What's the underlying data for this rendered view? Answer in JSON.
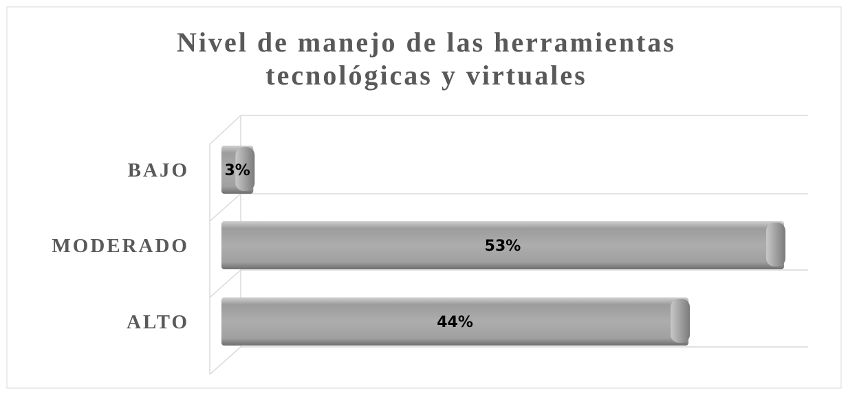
{
  "chart_data": {
    "type": "bar",
    "orientation": "horizontal",
    "title": "Nivel de manejo de las herramientas tecnológicas y virtuales",
    "categories": [
      "BAJO",
      "MODERADO",
      "ALTO"
    ],
    "values": [
      3,
      53,
      44
    ],
    "value_labels": [
      "3%",
      "53%",
      "44%"
    ],
    "color": "#a6a6a6"
  }
}
